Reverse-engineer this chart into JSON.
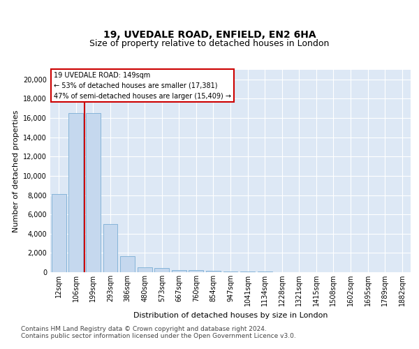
{
  "title_line1": "19, UVEDALE ROAD, ENFIELD, EN2 6HA",
  "title_line2": "Size of property relative to detached houses in London",
  "xlabel": "Distribution of detached houses by size in London",
  "ylabel": "Number of detached properties",
  "categories": [
    "12sqm",
    "106sqm",
    "199sqm",
    "293sqm",
    "386sqm",
    "480sqm",
    "573sqm",
    "667sqm",
    "760sqm",
    "854sqm",
    "947sqm",
    "1041sqm",
    "1134sqm",
    "1228sqm",
    "1321sqm",
    "1415sqm",
    "1508sqm",
    "1602sqm",
    "1695sqm",
    "1789sqm",
    "1882sqm"
  ],
  "values": [
    8100,
    16500,
    16500,
    5000,
    1700,
    500,
    400,
    250,
    200,
    150,
    100,
    70,
    50,
    30,
    20,
    15,
    10,
    8,
    5,
    3,
    2
  ],
  "bar_color": "#c5d8ee",
  "bar_edgecolor": "#7aadd4",
  "vline_color": "#cc0000",
  "vline_pos": 1.5,
  "annotation_text": "19 UVEDALE ROAD: 149sqm\n← 53% of detached houses are smaller (17,381)\n47% of semi-detached houses are larger (15,409) →",
  "annotation_box_facecolor": "#ffffff",
  "annotation_box_edgecolor": "#cc0000",
  "ylim": [
    0,
    21000
  ],
  "yticks": [
    0,
    2000,
    4000,
    6000,
    8000,
    10000,
    12000,
    14000,
    16000,
    18000,
    20000
  ],
  "footer_line1": "Contains HM Land Registry data © Crown copyright and database right 2024.",
  "footer_line2": "Contains public sector information licensed under the Open Government Licence v3.0.",
  "bg_color": "#ffffff",
  "plot_bg_color": "#dde8f5",
  "grid_color": "#ffffff",
  "title_fontsize": 10,
  "subtitle_fontsize": 9,
  "axis_label_fontsize": 8,
  "tick_fontsize": 7,
  "annotation_fontsize": 7,
  "footer_fontsize": 6.5
}
